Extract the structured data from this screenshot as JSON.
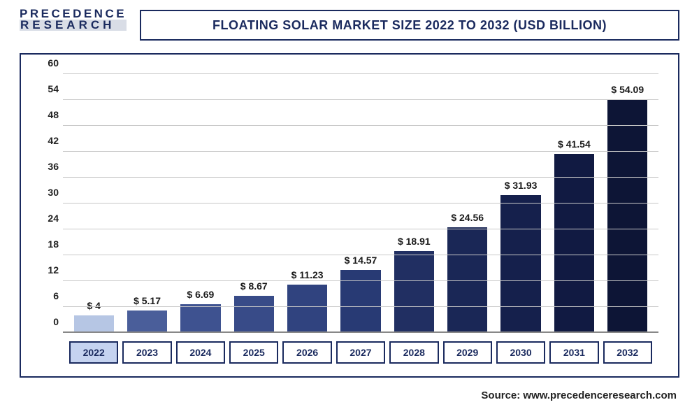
{
  "logo": {
    "line1": "PRECEDENCE",
    "line2": "RESEARCH"
  },
  "title": "FLOATING SOLAR MARKET SIZE 2022 TO 2032 (USD BILLION)",
  "source": "Source: www.precedenceresearch.com",
  "chart": {
    "type": "bar",
    "ylim": [
      0,
      60
    ],
    "ytick_step": 6,
    "yticks": [
      0,
      6,
      12,
      18,
      24,
      30,
      36,
      42,
      48,
      54,
      60
    ],
    "grid_color": "#c8c8c8",
    "background_color": "#ffffff",
    "border_color": "#1a2a5e",
    "title_fontsize": 18,
    "label_fontsize": 14,
    "bar_width": 0.75,
    "categories": [
      "2022",
      "2023",
      "2024",
      "2025",
      "2026",
      "2027",
      "2028",
      "2029",
      "2030",
      "2031",
      "2032"
    ],
    "values": [
      4,
      5.17,
      6.69,
      8.67,
      11.23,
      14.57,
      18.91,
      24.56,
      31.93,
      41.54,
      54.09
    ],
    "value_labels": [
      "$ 4",
      "$ 5.17",
      "$ 6.69",
      "$ 8.67",
      "$ 11.23",
      "$ 14.57",
      "$ 18.91",
      "$ 24.56",
      "$ 31.93",
      "$ 41.54",
      "$ 54.09"
    ],
    "bar_colors": [
      "#b6c6e4",
      "#4a5e9a",
      "#3e5290",
      "#384b88",
      "#30437f",
      "#283a74",
      "#212f62",
      "#1a2756",
      "#15204c",
      "#111a42",
      "#0d1536"
    ],
    "highlight_category_index": 0
  }
}
